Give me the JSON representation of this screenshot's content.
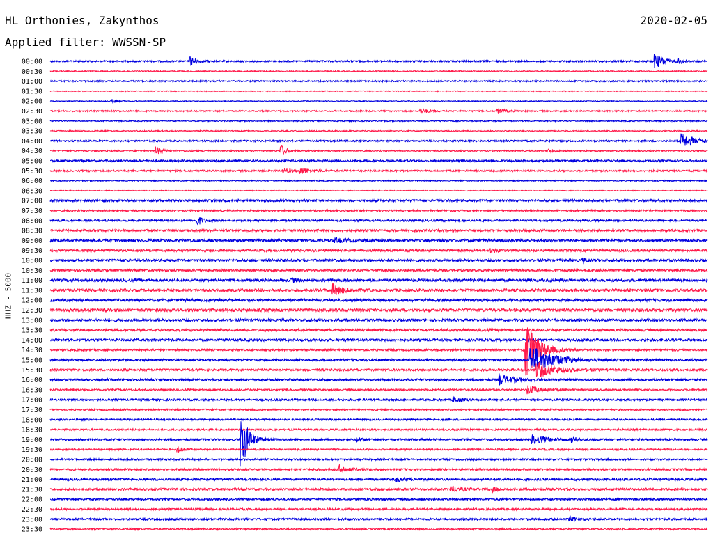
{
  "header": {
    "station": "HL Orthonies, Zakynthos",
    "date": "2020-02-05",
    "filter": "Applied filter: WWSSN-SP"
  },
  "colors": {
    "odd_trace": "#0000e0",
    "even_trace": "#ff1a4a"
  },
  "chart_data": {
    "type": "line",
    "title": "HL Orthonies, Zakynthos",
    "subtitle": "Applied filter: WWSSN-SP",
    "date": "2020-02-05",
    "ylabel": "HHZ - 5000",
    "row_minutes": 30,
    "row_labels": [
      "00:00",
      "00:30",
      "01:00",
      "01:30",
      "02:00",
      "02:30",
      "03:00",
      "03:30",
      "04:00",
      "04:30",
      "05:00",
      "05:30",
      "06:00",
      "06:30",
      "07:00",
      "07:30",
      "08:00",
      "08:30",
      "09:00",
      "09:30",
      "10:00",
      "10:30",
      "11:00",
      "11:30",
      "12:00",
      "12:30",
      "13:00",
      "13:30",
      "14:00",
      "14:30",
      "15:00",
      "15:30",
      "16:00",
      "16:30",
      "17:00",
      "17:30",
      "18:00",
      "18:30",
      "19:00",
      "19:30",
      "20:00",
      "20:30",
      "21:00",
      "21:30",
      "22:00",
      "22:30",
      "23:00",
      "23:30"
    ],
    "row_noise": [
      1.2,
      0.8,
      1.0,
      0.6,
      0.6,
      1.0,
      0.8,
      0.8,
      1.2,
      1.0,
      1.4,
      1.2,
      0.8,
      0.6,
      1.6,
      1.2,
      1.4,
      1.6,
      1.8,
      1.8,
      1.8,
      1.6,
      2.0,
      2.0,
      2.0,
      2.2,
      1.8,
      1.8,
      1.8,
      1.4,
      1.6,
      1.6,
      1.6,
      1.2,
      1.4,
      1.2,
      1.2,
      1.2,
      1.4,
      1.2,
      1.2,
      1.4,
      1.6,
      1.6,
      1.4,
      1.4,
      1.4,
      1.2
    ],
    "events": [
      {
        "row": 0,
        "minute": 6.4,
        "amp": 7,
        "dur": 0.4
      },
      {
        "row": 0,
        "minute": 27.6,
        "amp": 10,
        "dur": 0.7
      },
      {
        "row": 0,
        "minute": 28.7,
        "amp": 3,
        "dur": 0.3
      },
      {
        "row": 4,
        "minute": 2.8,
        "amp": 3,
        "dur": 0.4
      },
      {
        "row": 5,
        "minute": 16.9,
        "amp": 4,
        "dur": 0.5
      },
      {
        "row": 5,
        "minute": 20.4,
        "amp": 4,
        "dur": 0.5
      },
      {
        "row": 8,
        "minute": 28.8,
        "amp": 10,
        "dur": 1.0
      },
      {
        "row": 9,
        "minute": 4.8,
        "amp": 5,
        "dur": 0.6
      },
      {
        "row": 9,
        "minute": 10.5,
        "amp": 11,
        "dur": 0.3
      },
      {
        "row": 9,
        "minute": 22.7,
        "amp": 3,
        "dur": 0.5
      },
      {
        "row": 11,
        "minute": 10.6,
        "amp": 4,
        "dur": 0.5
      },
      {
        "row": 11,
        "minute": 11.4,
        "amp": 5,
        "dur": 0.7
      },
      {
        "row": 16,
        "minute": 6.7,
        "amp": 7,
        "dur": 0.4
      },
      {
        "row": 18,
        "minute": 13.0,
        "amp": 3,
        "dur": 0.9
      },
      {
        "row": 19,
        "minute": 20.1,
        "amp": 3,
        "dur": 0.4
      },
      {
        "row": 20,
        "minute": 24.3,
        "amp": 3,
        "dur": 0.5
      },
      {
        "row": 22,
        "minute": 11.0,
        "amp": 3,
        "dur": 0.3
      },
      {
        "row": 23,
        "minute": 12.9,
        "amp": 9,
        "dur": 0.6
      },
      {
        "row": 29,
        "minute": 21.7,
        "amp": 48,
        "dur": 0.8
      },
      {
        "row": 30,
        "minute": 21.9,
        "amp": 22,
        "dur": 1.4
      },
      {
        "row": 31,
        "minute": 22.2,
        "amp": 12,
        "dur": 1.2
      },
      {
        "row": 32,
        "minute": 20.5,
        "amp": 8,
        "dur": 0.9
      },
      {
        "row": 33,
        "minute": 21.8,
        "amp": 6,
        "dur": 0.9
      },
      {
        "row": 34,
        "minute": 18.4,
        "amp": 4,
        "dur": 0.5
      },
      {
        "row": 38,
        "minute": 8.7,
        "amp": 44,
        "dur": 0.5
      },
      {
        "row": 38,
        "minute": 22.0,
        "amp": 6,
        "dur": 1.2
      },
      {
        "row": 38,
        "minute": 23.8,
        "amp": 4,
        "dur": 0.4
      },
      {
        "row": 38,
        "minute": 14.0,
        "amp": 3,
        "dur": 0.4
      },
      {
        "row": 39,
        "minute": 5.8,
        "amp": 4,
        "dur": 0.4
      },
      {
        "row": 41,
        "minute": 13.2,
        "amp": 6,
        "dur": 0.6
      },
      {
        "row": 42,
        "minute": 15.8,
        "amp": 3,
        "dur": 0.5
      },
      {
        "row": 43,
        "minute": 18.3,
        "amp": 4,
        "dur": 0.7
      },
      {
        "row": 43,
        "minute": 20.2,
        "amp": 3,
        "dur": 0.4
      },
      {
        "row": 46,
        "minute": 23.7,
        "amp": 4,
        "dur": 0.5
      }
    ]
  }
}
